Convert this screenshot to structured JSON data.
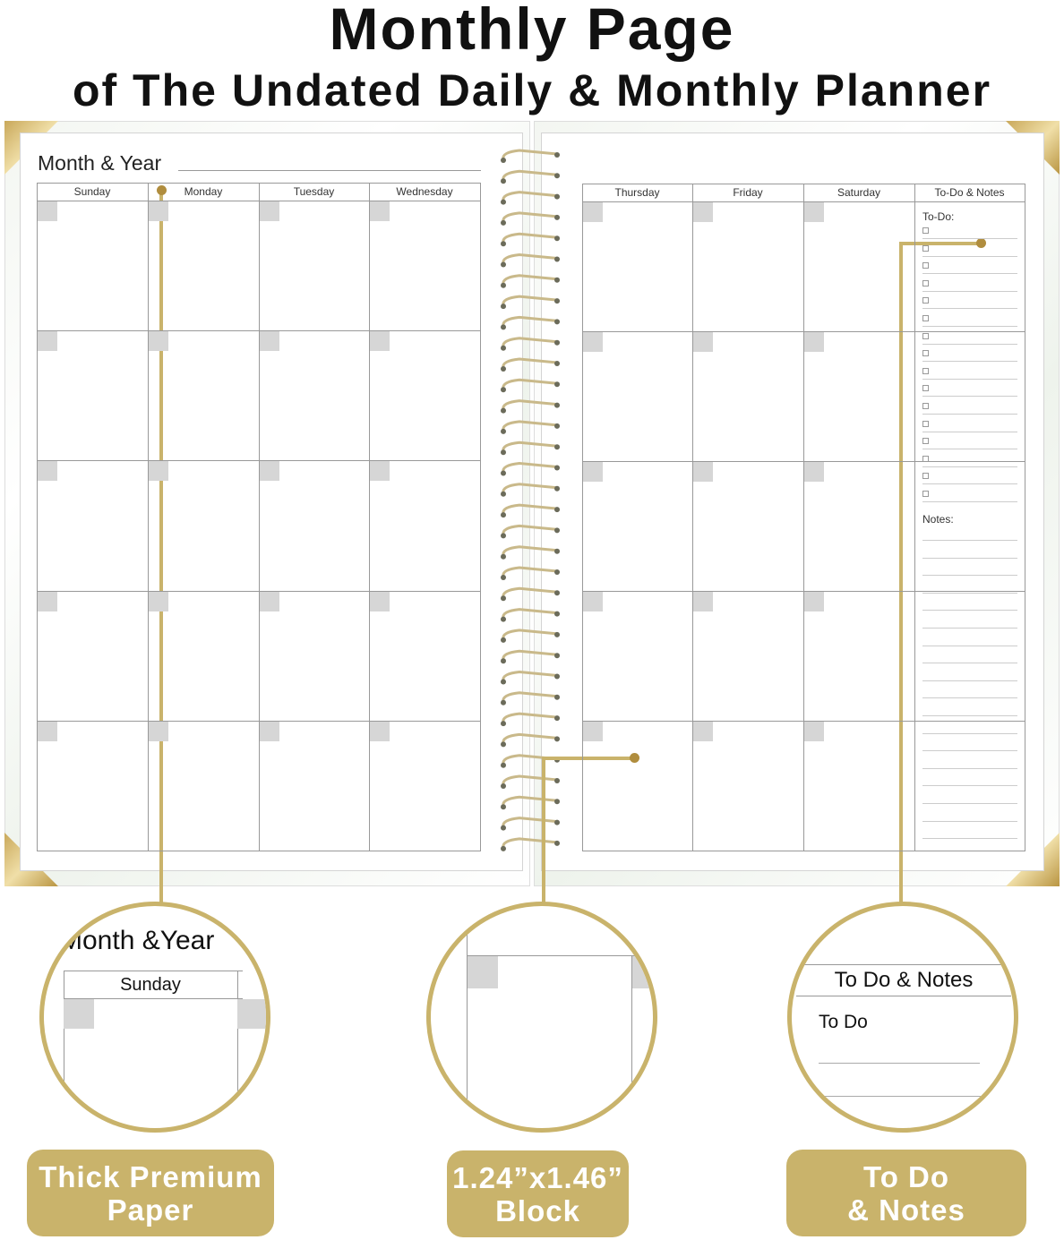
{
  "heading": {
    "title": "Monthly Page",
    "subtitle": "of The Undated Daily & Monthly Planner"
  },
  "left_page": {
    "month_year_label": "Month & Year",
    "days": [
      "Sunday",
      "Monday",
      "Tuesday",
      "Wednesday"
    ]
  },
  "right_page": {
    "days": [
      "Thursday",
      "Friday",
      "Saturday"
    ],
    "todo_notes_header": "To-Do & Notes",
    "todo_label": "To-Do:",
    "notes_label": "Notes:",
    "checkbox_count": 16
  },
  "callouts": [
    {
      "zoom_title": "Month &Year",
      "zoom_day": "Sunday",
      "badge": [
        "Thick Premium",
        "Paper"
      ]
    },
    {
      "badge": [
        "1.24”x1.46”",
        "Block"
      ]
    },
    {
      "zoom_header": "To Do & Notes",
      "zoom_todo": "To Do",
      "badge": [
        "To Do",
        "& Notes"
      ]
    }
  ],
  "colors": {
    "gold": "#c9b36b",
    "gold_dot": "#b08d3e",
    "date_box": "#d6d6d6",
    "grid": "#999999"
  }
}
